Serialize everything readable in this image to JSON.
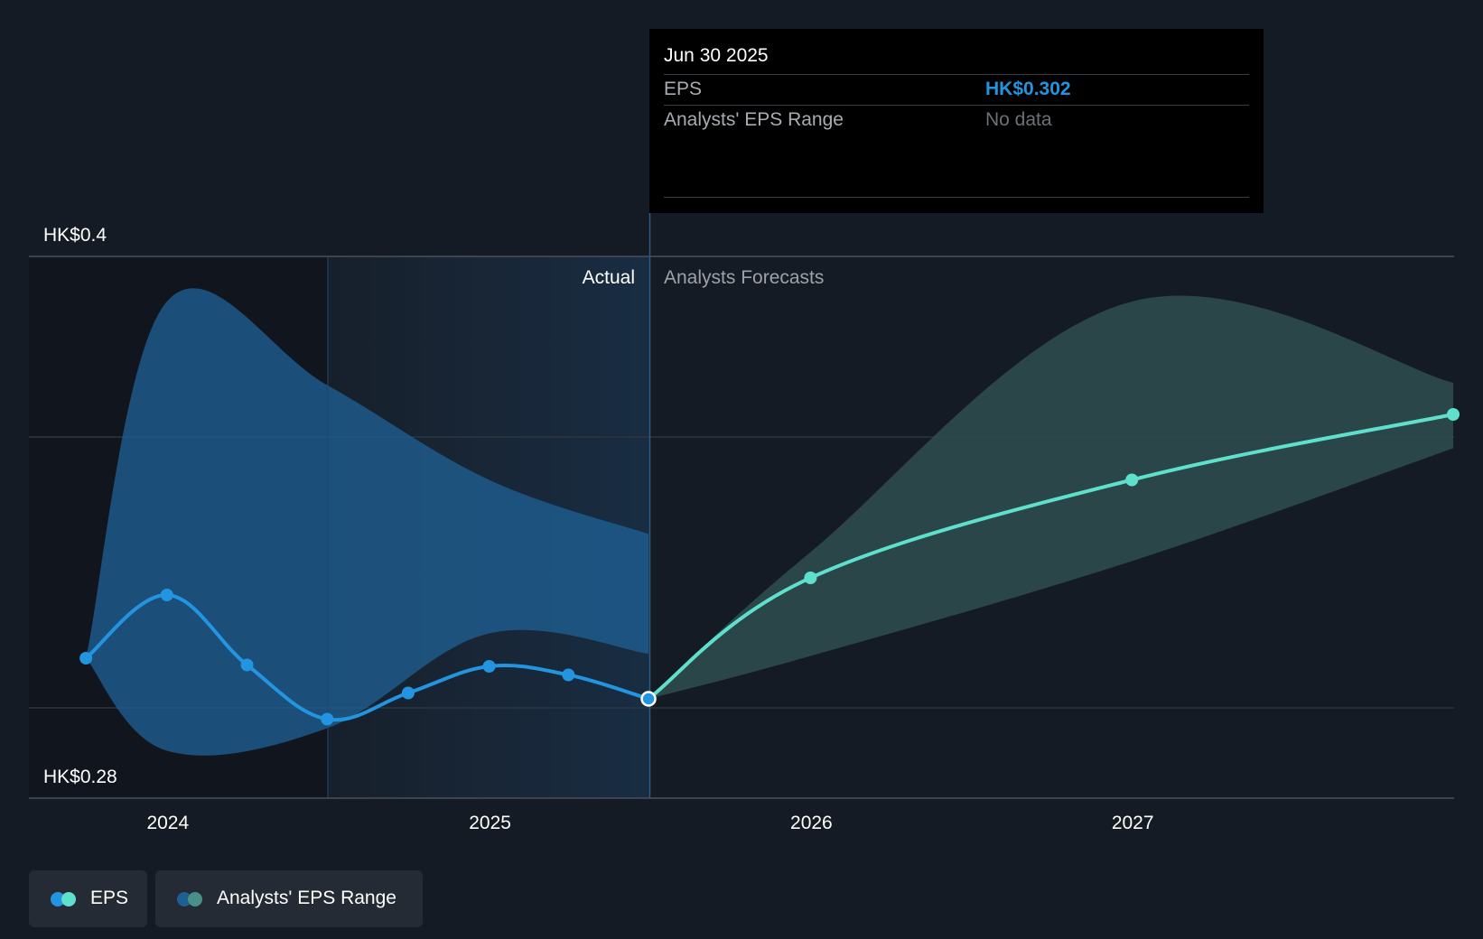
{
  "chart_data": {
    "type": "line",
    "title": "",
    "y_axis": {
      "labels": [
        "HK$0.4",
        "HK$0.28"
      ],
      "ylim": [
        0.28,
        0.4
      ]
    },
    "x_axis": {
      "ticks": [
        "2024",
        "2025",
        "2026",
        "2027"
      ]
    },
    "segments": {
      "actual": "Actual",
      "forecast": "Analysts Forecasts"
    },
    "series": [
      {
        "name": "EPS",
        "color": "#2394df",
        "points": [
          {
            "date": "2023-09-30",
            "value": 0.311
          },
          {
            "date": "2023-12-31",
            "value": 0.325
          },
          {
            "date": "2024-03-31",
            "value": 0.3095
          },
          {
            "date": "2024-06-30",
            "value": 0.2975
          },
          {
            "date": "2024-09-30",
            "value": 0.3033
          },
          {
            "date": "2024-12-31",
            "value": 0.3092
          },
          {
            "date": "2025-03-31",
            "value": 0.3073
          },
          {
            "date": "2025-06-30",
            "value": 0.302
          }
        ]
      },
      {
        "name": "EPS Forecast",
        "color": "#5ee0cc",
        "points": [
          {
            "date": "2025-06-30",
            "value": 0.302
          },
          {
            "date": "2025-12-31",
            "value": 0.3288
          },
          {
            "date": "2026-12-31",
            "value": 0.3505
          },
          {
            "date": "2027-12-31",
            "value": 0.365
          }
        ]
      }
    ],
    "ranges": [
      {
        "name": "Analysts' EPS Range (historical)",
        "color": "#1f5f92",
        "points": [
          {
            "date": "2023-09-30",
            "low": 0.311,
            "high": 0.311
          },
          {
            "date": "2023-12-31",
            "low": 0.2905,
            "high": 0.39
          },
          {
            "date": "2024-06-30",
            "low": 0.2955,
            "high": 0.3715
          },
          {
            "date": "2024-12-31",
            "low": 0.3165,
            "high": 0.3505
          },
          {
            "date": "2025-06-30",
            "low": 0.312,
            "high": 0.3385
          }
        ]
      },
      {
        "name": "Analysts' EPS Range (forecast)",
        "color": "#2e4d4f",
        "points": [
          {
            "date": "2025-06-30",
            "low": 0.302,
            "high": 0.302
          },
          {
            "date": "2025-12-31",
            "low": 0.3115,
            "high": 0.3345
          },
          {
            "date": "2026-12-31",
            "low": 0.3325,
            "high": 0.39
          },
          {
            "date": "2027-12-31",
            "low": 0.3575,
            "high": 0.372
          }
        ]
      }
    ],
    "highlight_date": "2025-06-30"
  },
  "tooltip": {
    "date": "Jun 30 2025",
    "rows": [
      {
        "label": "EPS",
        "value": "HK$0.302",
        "value_color": "#2394df"
      },
      {
        "label": "Analysts' EPS Range",
        "value": "No data",
        "value_color": "#6c7077"
      }
    ]
  },
  "legend": [
    {
      "label": "EPS",
      "colors": [
        "#2394df",
        "#5ee0cc"
      ]
    },
    {
      "label": "Analysts' EPS Range",
      "colors": [
        "#1f5f92",
        "#4a8f88"
      ]
    }
  ]
}
